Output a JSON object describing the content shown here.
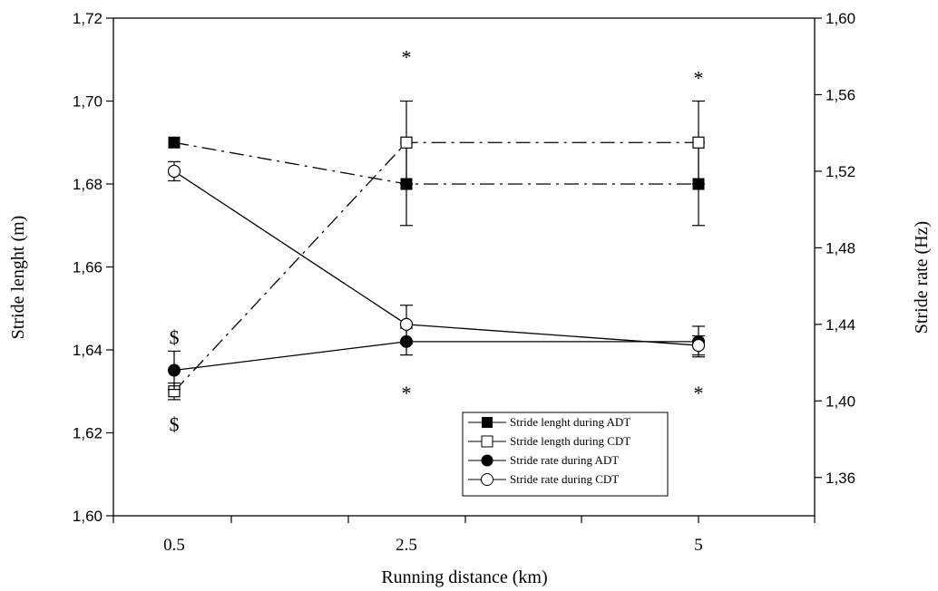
{
  "chart_data": {
    "type": "line",
    "xlabel": "Running distance (km)",
    "ylabel_left": "Stride lenght (m)",
    "ylabel_right": "Stride rate (Hz)",
    "categories": [
      "0.5",
      "2.5",
      "5"
    ],
    "ylim_left": [
      1.6,
      1.72
    ],
    "yticks_left": [
      "1,60",
      "1,62",
      "1,64",
      "1,66",
      "1,68",
      "1,70",
      "1,72"
    ],
    "ylim_right": [
      1.34,
      1.6
    ],
    "yticks_right": [
      "1,36",
      "1,40",
      "1,44",
      "1,48",
      "1,52",
      "1,56",
      "1,60"
    ],
    "grid": false,
    "legend_position": "bottom-right",
    "series": [
      {
        "name": "Stride lenght during ADT",
        "axis": "left",
        "marker": "filled-square",
        "line": "dash-dot",
        "values": [
          1.69,
          1.68,
          1.68
        ],
        "err": [
          0,
          0.01,
          0.01
        ]
      },
      {
        "name": "Stride length during CDT",
        "axis": "left",
        "marker": "open-square",
        "line": "dash-dot",
        "values": [
          1.63,
          1.69,
          1.69
        ],
        "err": [
          0.002,
          0.01,
          0.01
        ]
      },
      {
        "name": "Stride rate during ADT",
        "axis": "right",
        "marker": "filled-circle",
        "line": "solid",
        "values": [
          1.416,
          1.431,
          1.431
        ],
        "err": [
          0.01,
          0.007,
          0.008
        ]
      },
      {
        "name": "Stride rate during CDT",
        "axis": "right",
        "marker": "open-circle",
        "line": "solid",
        "values": [
          1.52,
          1.44,
          1.429
        ],
        "err": [
          0.005,
          0.01,
          0.005
        ]
      }
    ],
    "annotations": [
      {
        "text": "$",
        "x": "0.5",
        "axis": "left",
        "y": 1.643
      },
      {
        "text": "$",
        "x": "0.5",
        "axis": "left",
        "y": 1.622
      },
      {
        "text": "*",
        "x": "2.5",
        "axis": "left",
        "y": 1.712
      },
      {
        "text": "*",
        "x": "2.5",
        "axis": "left",
        "y": 1.631
      },
      {
        "text": "*",
        "x": "5",
        "axis": "left",
        "y": 1.707
      },
      {
        "text": "*",
        "x": "5",
        "axis": "left",
        "y": 1.631
      }
    ]
  }
}
